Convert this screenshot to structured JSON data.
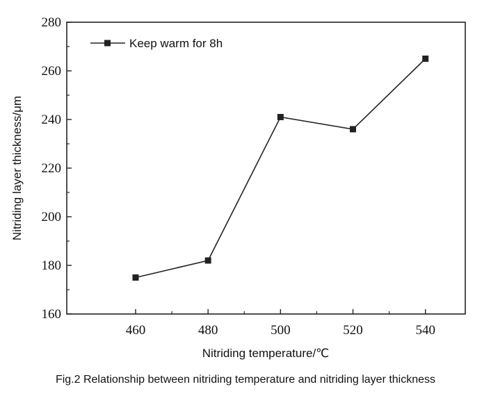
{
  "caption": "Fig.2 Relationship between nitriding temperature and nitriding layer thickness",
  "chart_data": {
    "type": "line",
    "title": "",
    "xlabel": "Nitriding temperature/℃",
    "ylabel": "Nitriding layer thickness/μm",
    "x": [
      460,
      480,
      500,
      520,
      540
    ],
    "series": [
      {
        "name": "Keep warm for 8h",
        "values": [
          175,
          182,
          241,
          236,
          265
        ]
      }
    ],
    "xlim": [
      441,
      551
    ],
    "ylim": [
      160,
      280
    ],
    "xticks": [
      460,
      480,
      500,
      520,
      540
    ],
    "yticks": [
      160,
      180,
      200,
      220,
      240,
      260,
      280
    ],
    "grid": false,
    "legend": "top-left",
    "colors": {
      "line": "#222222",
      "marker": "#222222",
      "axis": "#222222"
    }
  }
}
